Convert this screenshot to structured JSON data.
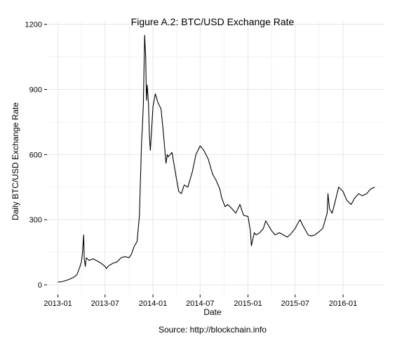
{
  "chart_data": {
    "type": "line",
    "title": "Figure A.2: BTC/USD Exchange Rate",
    "xlabel": "Date",
    "ylabel": "Daily BTC/USD Exchange Rate",
    "caption": "Source: http://blockchain.info",
    "x_tick_labels": [
      "2013-01",
      "2013-07",
      "2014-01",
      "2014-07",
      "2015-01",
      "2015-07",
      "2016-01"
    ],
    "y_tick_labels": [
      "0",
      "300",
      "600",
      "900",
      "1200"
    ],
    "xlim": [
      "2012-11-20",
      "2016-06-05"
    ],
    "ylim": [
      -45,
      1215
    ],
    "grid": true,
    "series": [
      {
        "x": [
          "2013-01-01",
          "2013-01-15",
          "2013-02-01",
          "2013-02-15",
          "2013-03-01",
          "2013-03-15",
          "2013-03-25",
          "2013-04-01",
          "2013-04-05",
          "2013-04-10",
          "2013-04-12",
          "2013-04-16",
          "2013-04-20",
          "2013-05-01",
          "2013-05-15",
          "2013-06-01",
          "2013-06-15",
          "2013-07-01",
          "2013-07-06",
          "2013-07-15",
          "2013-08-01",
          "2013-08-15",
          "2013-09-01",
          "2013-09-15",
          "2013-10-01",
          "2013-10-10",
          "2013-10-20",
          "2013-11-01",
          "2013-11-10",
          "2013-11-18",
          "2013-11-21",
          "2013-11-25",
          "2013-11-30",
          "2013-12-04",
          "2013-12-07",
          "2013-12-10",
          "2013-12-15",
          "2013-12-18",
          "2013-12-22",
          "2014-01-01",
          "2014-01-10",
          "2014-01-20",
          "2014-02-01",
          "2014-02-10",
          "2014-02-20",
          "2014-02-25",
          "2014-03-01",
          "2014-03-15",
          "2014-04-01",
          "2014-04-10",
          "2014-04-20",
          "2014-05-01",
          "2014-05-15",
          "2014-06-01",
          "2014-06-15",
          "2014-07-01",
          "2014-07-15",
          "2014-08-01",
          "2014-08-18",
          "2014-09-01",
          "2014-09-15",
          "2014-09-22",
          "2014-10-05",
          "2014-10-15",
          "2014-11-01",
          "2014-11-15",
          "2014-12-01",
          "2014-12-15",
          "2015-01-01",
          "2015-01-10",
          "2015-01-14",
          "2015-01-25",
          "2015-02-01",
          "2015-02-15",
          "2015-03-01",
          "2015-03-10",
          "2015-04-01",
          "2015-04-15",
          "2015-05-01",
          "2015-06-01",
          "2015-06-15",
          "2015-07-01",
          "2015-07-10",
          "2015-07-20",
          "2015-08-01",
          "2015-08-20",
          "2015-09-01",
          "2015-09-15",
          "2015-10-01",
          "2015-10-15",
          "2015-11-01",
          "2015-11-04",
          "2015-11-10",
          "2015-11-20",
          "2015-12-01",
          "2015-12-15",
          "2016-01-01",
          "2016-01-15",
          "2016-02-01",
          "2016-02-15",
          "2016-03-01",
          "2016-03-15",
          "2016-04-01",
          "2016-04-15",
          "2016-05-01"
        ],
        "y": [
          13,
          14,
          20,
          26,
          34,
          47,
          78,
          105,
          143,
          230,
          120,
          85,
          125,
          112,
          120,
          110,
          100,
          85,
          75,
          88,
          100,
          105,
          125,
          130,
          125,
          140,
          175,
          200,
          320,
          650,
          720,
          830,
          1150,
          1050,
          850,
          920,
          830,
          690,
          620,
          820,
          880,
          840,
          810,
          700,
          560,
          600,
          590,
          610,
          490,
          430,
          420,
          460,
          450,
          520,
          600,
          640,
          620,
          580,
          510,
          480,
          440,
          400,
          360,
          370,
          350,
          330,
          370,
          320,
          315,
          250,
          180,
          240,
          230,
          240,
          260,
          295,
          250,
          230,
          240,
          220,
          235,
          260,
          280,
          300,
          270,
          230,
          225,
          230,
          245,
          260,
          330,
          420,
          350,
          330,
          380,
          450,
          430,
          390,
          370,
          400,
          420,
          410,
          420,
          440,
          450
        ]
      }
    ]
  }
}
